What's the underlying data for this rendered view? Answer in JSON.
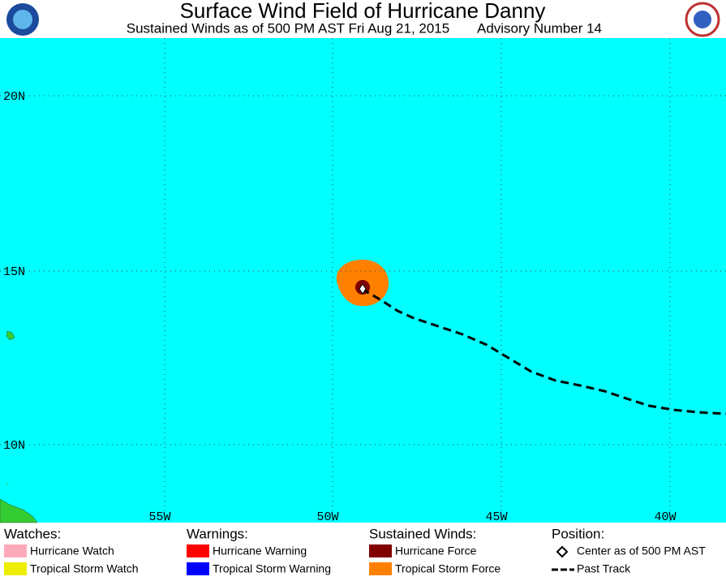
{
  "header": {
    "title": "Surface Wind Field of Hurricane Danny",
    "subtitle": "Sustained Winds as of 500 PM AST Fri Aug 21, 2015",
    "advisory": "Advisory Number 14"
  },
  "map": {
    "lat_labels": [
      "20N",
      "15N",
      "10N"
    ],
    "lon_labels": [
      "55W",
      "50W",
      "45W",
      "40W"
    ]
  },
  "legend": {
    "watches": {
      "heading": "Watches:",
      "items": [
        "Hurricane Watch",
        "Tropical Storm Watch"
      ]
    },
    "warnings": {
      "heading": "Warnings:",
      "items": [
        "Hurricane Warning",
        "Tropical Storm Warning"
      ]
    },
    "winds": {
      "heading": "Sustained Winds:",
      "items": [
        "Hurricane Force",
        "Tropical Storm Force"
      ]
    },
    "position": {
      "heading": "Position:",
      "items": [
        "Center as of 500 PM AST",
        "Past Track"
      ]
    }
  }
}
